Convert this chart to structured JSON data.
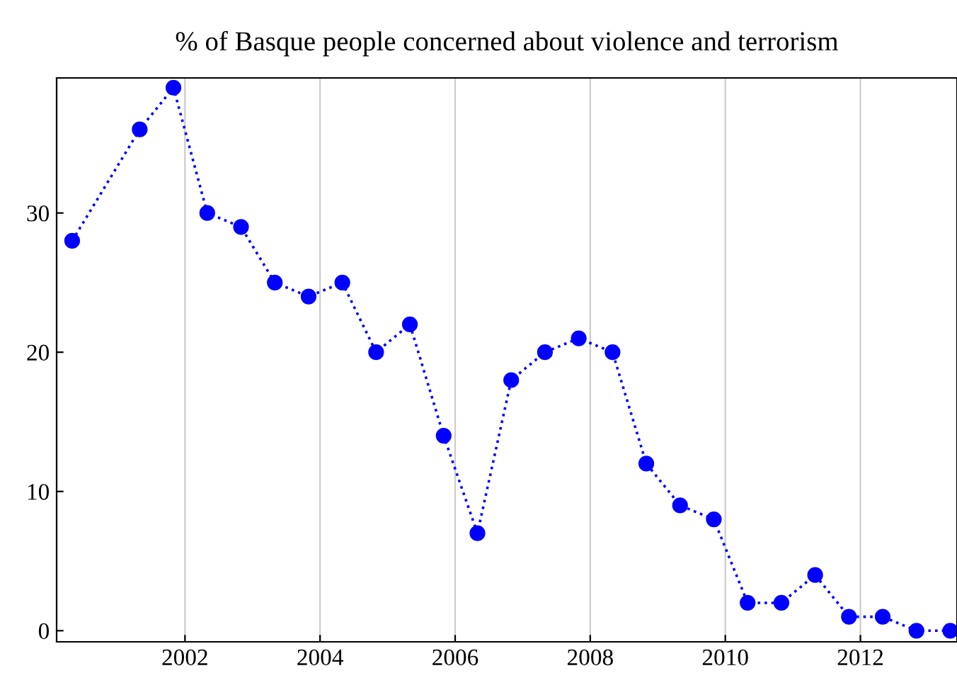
{
  "chart_data": {
    "type": "line",
    "title": "% of Basque people concerned about violence and terrorism",
    "x": [
      2000.33,
      2001.33,
      2001.83,
      2002.33,
      2002.83,
      2003.33,
      2003.83,
      2004.33,
      2004.83,
      2005.33,
      2005.83,
      2006.33,
      2006.83,
      2007.33,
      2007.83,
      2008.33,
      2008.83,
      2009.33,
      2009.83,
      2010.33,
      2010.83,
      2011.33,
      2011.83,
      2012.33,
      2012.83,
      2013.33
    ],
    "series": [
      {
        "color": "#0000ff",
        "values": [
          28,
          36,
          39,
          30,
          29,
          25,
          24,
          25,
          20,
          22,
          14,
          7,
          18,
          20,
          21,
          20,
          12,
          9,
          8,
          2,
          2,
          4,
          1,
          1,
          0,
          0
        ]
      }
    ],
    "xlim": [
      2000.1,
      2013.43
    ],
    "xticks": [
      2002,
      2004,
      2006,
      2008,
      2010,
      2012
    ],
    "ylim": [
      -0.8,
      39.7
    ],
    "yticks": [
      0,
      10,
      20,
      30
    ],
    "grid": "x",
    "marker": "circle",
    "line_style": "dotted"
  }
}
